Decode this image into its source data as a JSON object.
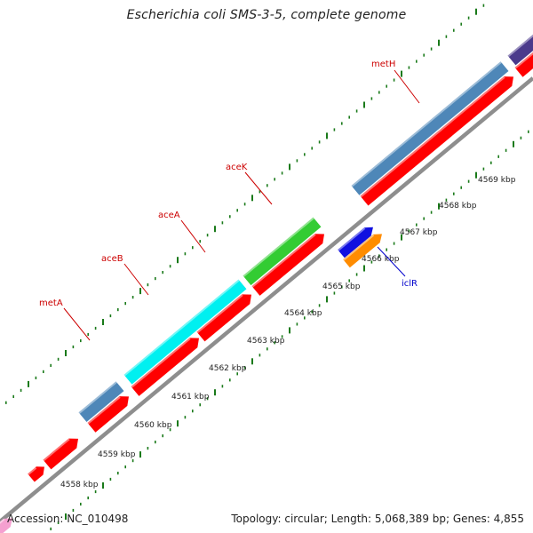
{
  "header": {
    "title": "Escherichia coli SMS-3-5, complete genome"
  },
  "footer": {
    "accession": "Accession: NC_010498",
    "summary": "Topology: circular; Length: 5,068,389 bp; Genes: 4,855"
  },
  "colors": {
    "backbone": "#8e8e8e",
    "cds": "#ff0000",
    "gene_blue": "#4e87b8",
    "gene_cyan": "#00f0f0",
    "gene_green": "#33cc33",
    "gene_navy": "#1010e0",
    "gene_orange": "#ff8c00",
    "gene_purple": "#4b3a8c",
    "gene_pink": "#f5a0d0",
    "tick": "#1a7a1a",
    "label_top": "#cc0000",
    "label_bottom": "#0000cc"
  },
  "genome_map": {
    "kbp_labels": [
      "4558 kbp",
      "4559 kbp",
      "4560 kbp",
      "4561 kbp",
      "4562 kbp",
      "4563 kbp",
      "4564 kbp",
      "4565 kbp",
      "4566 kbp",
      "4567 kbp",
      "4568 kbp",
      "4569 kbp"
    ],
    "gene_labels": [
      {
        "text": "metA",
        "strand": "top"
      },
      {
        "text": "aceB",
        "strand": "top"
      },
      {
        "text": "aceA",
        "strand": "top"
      },
      {
        "text": "aceK",
        "strand": "top"
      },
      {
        "text": "metH",
        "strand": "top"
      },
      {
        "text": "iclR",
        "strand": "bottom"
      }
    ]
  }
}
